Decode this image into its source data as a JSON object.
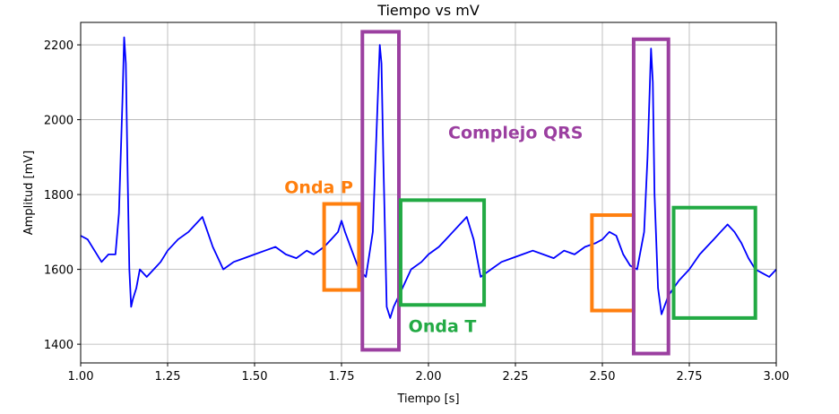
{
  "chart_data": {
    "type": "line",
    "title": "Tiempo vs mV",
    "xlabel": "Tiempo [s]",
    "ylabel": "Amplitud [mV]",
    "xlim": [
      1.0,
      3.0
    ],
    "ylim": [
      1350,
      2260
    ],
    "grid": true,
    "xticks": [
      1.0,
      1.25,
      1.5,
      1.75,
      2.0,
      2.25,
      2.5,
      2.75,
      3.0
    ],
    "xtick_labels": [
      "1.00",
      "1.25",
      "1.50",
      "1.75",
      "2.00",
      "2.25",
      "2.50",
      "2.75",
      "3.00"
    ],
    "yticks": [
      1400,
      1600,
      1800,
      2000,
      2200
    ],
    "ytick_labels": [
      "1400",
      "1600",
      "1800",
      "2000",
      "2200"
    ],
    "series": [
      {
        "color": "#0000ff",
        "x": [
          1.0,
          1.02,
          1.04,
          1.06,
          1.08,
          1.1,
          1.11,
          1.12,
          1.125,
          1.13,
          1.135,
          1.14,
          1.145,
          1.15,
          1.16,
          1.17,
          1.19,
          1.21,
          1.23,
          1.25,
          1.28,
          1.31,
          1.33,
          1.35,
          1.38,
          1.41,
          1.44,
          1.47,
          1.5,
          1.53,
          1.56,
          1.59,
          1.62,
          1.65,
          1.67,
          1.7,
          1.72,
          1.74,
          1.75,
          1.76,
          1.78,
          1.8,
          1.82,
          1.84,
          1.85,
          1.86,
          1.865,
          1.87,
          1.88,
          1.89,
          1.9,
          1.92,
          1.95,
          1.98,
          2.0,
          2.03,
          2.05,
          2.07,
          2.09,
          2.11,
          2.13,
          2.15,
          2.18,
          2.21,
          2.24,
          2.27,
          2.3,
          2.33,
          2.36,
          2.39,
          2.42,
          2.45,
          2.48,
          2.5,
          2.52,
          2.54,
          2.56,
          2.58,
          2.6,
          2.62,
          2.63,
          2.64,
          2.645,
          2.65,
          2.66,
          2.67,
          2.69,
          2.72,
          2.75,
          2.78,
          2.8,
          2.82,
          2.84,
          2.86,
          2.88,
          2.9,
          2.92,
          2.94,
          2.96,
          2.98,
          3.0
        ],
        "y": [
          1690,
          1680,
          1650,
          1620,
          1640,
          1640,
          1750,
          2050,
          2220,
          2150,
          1850,
          1600,
          1500,
          1520,
          1550,
          1600,
          1580,
          1600,
          1620,
          1650,
          1680,
          1700,
          1720,
          1740,
          1660,
          1600,
          1620,
          1630,
          1640,
          1650,
          1660,
          1640,
          1630,
          1650,
          1640,
          1660,
          1680,
          1700,
          1730,
          1700,
          1650,
          1600,
          1580,
          1700,
          1950,
          2200,
          2150,
          1900,
          1500,
          1470,
          1500,
          1540,
          1600,
          1620,
          1640,
          1660,
          1680,
          1700,
          1720,
          1740,
          1680,
          1580,
          1600,
          1620,
          1630,
          1640,
          1650,
          1640,
          1630,
          1650,
          1640,
          1660,
          1670,
          1680,
          1700,
          1690,
          1640,
          1610,
          1600,
          1700,
          1900,
          2190,
          2100,
          1800,
          1550,
          1480,
          1530,
          1570,
          1600,
          1640,
          1660,
          1680,
          1700,
          1720,
          1700,
          1670,
          1630,
          1600,
          1590,
          1580,
          1600
        ]
      }
    ],
    "annotations": [
      {
        "label": "Onda P",
        "color": "#ff7f0e",
        "x0": 1.7,
        "x1": 1.8,
        "y0": 1545,
        "y1": 1775
      },
      {
        "label": "",
        "color": "#ff7f0e",
        "x0": 2.47,
        "x1": 2.59,
        "y0": 1490,
        "y1": 1745
      },
      {
        "label": "Complejo QRS",
        "color": "#9b3fa0",
        "x0": 1.81,
        "x1": 1.915,
        "y0": 1385,
        "y1": 2235
      },
      {
        "label": "",
        "color": "#9b3fa0",
        "x0": 2.59,
        "x1": 2.69,
        "y0": 1375,
        "y1": 2215
      },
      {
        "label": "Onda T",
        "color": "#22aa44",
        "x0": 1.92,
        "x1": 2.16,
        "y0": 1505,
        "y1": 1785
      },
      {
        "label": "",
        "color": "#22aa44",
        "x0": 2.705,
        "x1": 2.94,
        "y0": 1470,
        "y1": 1765
      }
    ]
  }
}
